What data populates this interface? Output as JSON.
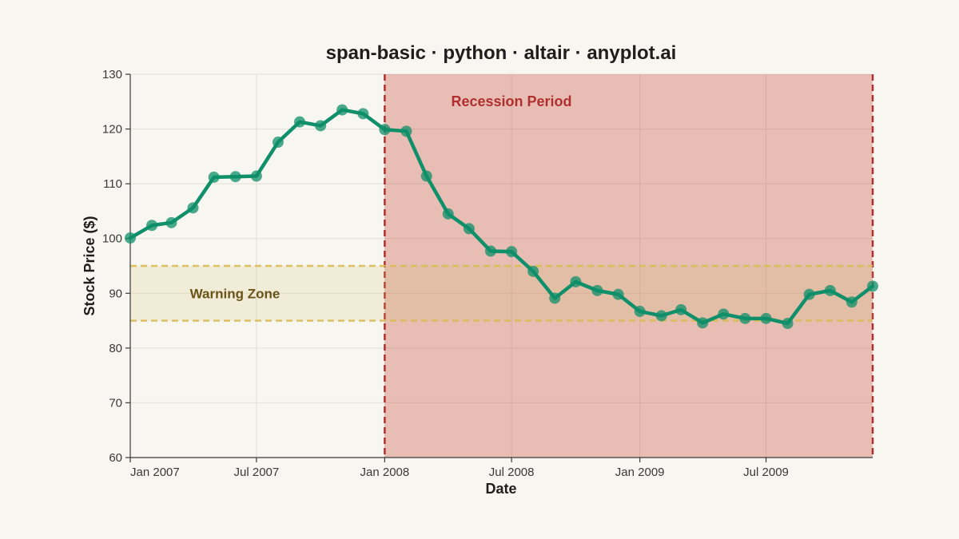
{
  "chart_data": {
    "type": "line",
    "title": "span-basic · python · altair · anyplot.ai",
    "xlabel": "Date",
    "ylabel": "Stock Price ($)",
    "x_domain": [
      "2007-01-01",
      "2009-12-01"
    ],
    "ylim": [
      60,
      130
    ],
    "y_ticks": [
      60,
      70,
      80,
      90,
      100,
      110,
      120,
      130
    ],
    "x_ticks": [
      {
        "date": "2007-01-01",
        "label": "Jan 2007"
      },
      {
        "date": "2007-07-01",
        "label": "Jul 2007"
      },
      {
        "date": "2008-01-01",
        "label": "Jan 2008"
      },
      {
        "date": "2008-07-01",
        "label": "Jul 2008"
      },
      {
        "date": "2009-01-01",
        "label": "Jan 2009"
      },
      {
        "date": "2009-07-01",
        "label": "Jul 2009"
      }
    ],
    "grid": true,
    "legend": "none",
    "series": [
      {
        "color": "#0F8F6A",
        "x": [
          "2007-01-01",
          "2007-02-01",
          "2007-03-01",
          "2007-04-01",
          "2007-05-01",
          "2007-06-01",
          "2007-07-01",
          "2007-08-01",
          "2007-09-01",
          "2007-10-01",
          "2007-11-01",
          "2007-12-01",
          "2008-01-01",
          "2008-02-01",
          "2008-03-01",
          "2008-04-01",
          "2008-05-01",
          "2008-06-01",
          "2008-07-01",
          "2008-08-01",
          "2008-09-01",
          "2008-10-01",
          "2008-11-01",
          "2008-12-01",
          "2009-01-01",
          "2009-02-01",
          "2009-03-01",
          "2009-04-01",
          "2009-05-01",
          "2009-06-01",
          "2009-07-01",
          "2009-08-01",
          "2009-09-01",
          "2009-10-01",
          "2009-11-01",
          "2009-12-01"
        ],
        "values": [
          100.1,
          102.4,
          102.9,
          105.6,
          111.2,
          111.3,
          111.4,
          117.6,
          121.3,
          120.6,
          123.5,
          122.8,
          119.9,
          119.6,
          111.4,
          104.5,
          101.8,
          97.7,
          97.6,
          94.0,
          89.1,
          92.1,
          90.5,
          89.8,
          86.7,
          85.9,
          87.0,
          84.6,
          86.2,
          85.4,
          85.4,
          84.5,
          89.8,
          90.5,
          88.4,
          91.3
        ]
      }
    ],
    "spans": [
      {
        "label": "Recession Period",
        "orientation": "vertical",
        "x_start": "2008-01-01",
        "x_end": "2009-12-01",
        "fill": "#C0392B",
        "edge": "#B03030",
        "text_color": "#B03030"
      },
      {
        "label": "Warning Zone",
        "orientation": "horizontal",
        "y_start": 85,
        "y_end": 95,
        "fill": "#D4C26A",
        "edge": "#D9BB55",
        "text_color": "#6B5418"
      }
    ],
    "colors": {
      "background": "#F8F6F0",
      "line": "#0F8F6A",
      "grid": "#E2DFD6",
      "axis": "#3A3A3A"
    }
  }
}
